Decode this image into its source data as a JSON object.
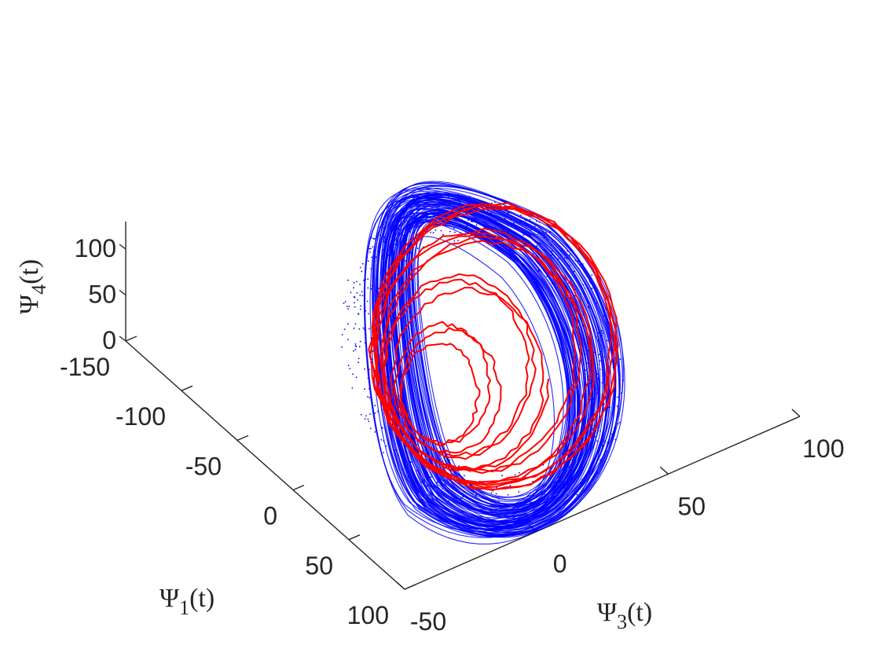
{
  "chart_data": {
    "type": "line",
    "title": "",
    "axes": {
      "x": {
        "label_base": "Ψ",
        "label_sub": "1",
        "label_tail": "(t)",
        "ticks": [
          -150,
          -100,
          -50,
          0,
          50,
          100
        ],
        "tick_labels": [
          "-150",
          "-100",
          "-50",
          "0",
          "50",
          "100"
        ],
        "range": [
          -150,
          100
        ]
      },
      "y": {
        "label_base": "Ψ",
        "label_sub": "3",
        "label_tail": "(t)",
        "ticks": [
          -50,
          0,
          50,
          100
        ],
        "tick_labels": [
          "-50",
          "0",
          "50",
          "100"
        ],
        "range": [
          -50,
          100
        ]
      },
      "z": {
        "label_base": "Ψ",
        "label_sub": "4",
        "label_tail": "(t)",
        "ticks": [
          0,
          50,
          100
        ],
        "tick_labels": [
          "0",
          "50",
          "100"
        ],
        "range": [
          0,
          130
        ]
      }
    },
    "grid": false,
    "legend": "none",
    "series": [
      {
        "style": "dotted",
        "color": "#0000ff",
        "description_points": 2600
      },
      {
        "style": "solid",
        "color": "#ff0000",
        "description_points": 1800
      }
    ]
  }
}
